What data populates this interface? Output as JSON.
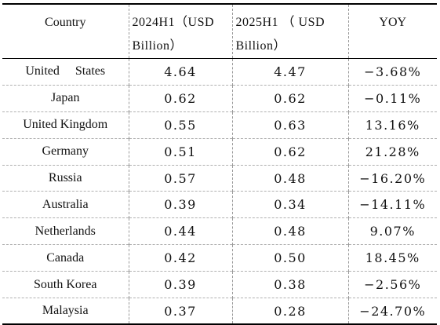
{
  "table": {
    "headers": {
      "country": "Country",
      "h2024": "2024H1（USD Billion）",
      "h2025": "2025H1 （ USD Billion）",
      "yoy": "YOY"
    },
    "rows": [
      {
        "country": "United     States",
        "v2024": "4.64",
        "v2025": "4.47",
        "yoy": "−3.68%"
      },
      {
        "country": "Japan",
        "v2024": "0.62",
        "v2025": "0.62",
        "yoy": "−0.11%"
      },
      {
        "country": "United Kingdom",
        "v2024": "0.55",
        "v2025": "0.63",
        "yoy": "13.16%"
      },
      {
        "country": "Germany",
        "v2024": "0.51",
        "v2025": "0.62",
        "yoy": "21.28%"
      },
      {
        "country": "Russia",
        "v2024": "0.57",
        "v2025": "0.48",
        "yoy": "−16.20%"
      },
      {
        "country": "Australia",
        "v2024": "0.39",
        "v2025": "0.34",
        "yoy": "−14.11%"
      },
      {
        "country": "Netherlands",
        "v2024": "0.44",
        "v2025": "0.48",
        "yoy": "9.07%"
      },
      {
        "country": "Canada",
        "v2024": "0.42",
        "v2025": "0.50",
        "yoy": "18.45%"
      },
      {
        "country": "South Korea",
        "v2024": "0.39",
        "v2025": "0.38",
        "yoy": "−2.56%"
      },
      {
        "country": "Malaysia",
        "v2024": "0.37",
        "v2025": "0.28",
        "yoy": "−24.70%"
      }
    ]
  }
}
